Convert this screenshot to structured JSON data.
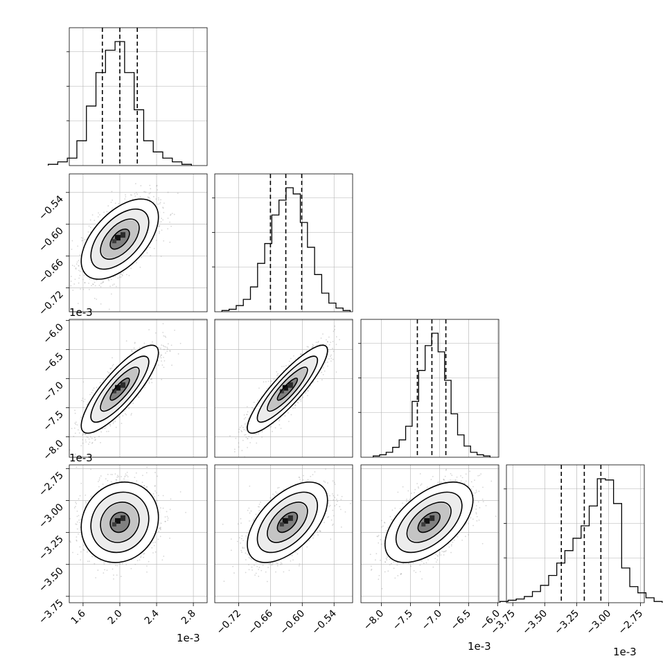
{
  "chart_data": {
    "type": "corner",
    "scale_label": "1e-3",
    "params": [
      {
        "range": [
          1.45,
          2.95
        ],
        "ticks": [
          1.6,
          2.0,
          2.4,
          2.8
        ],
        "tick_labels": [
          "1.6",
          "2.0",
          "2.4",
          "2.8"
        ],
        "quantiles": [
          1.81,
          2.0,
          2.19
        ],
        "hist_counts": [
          1,
          3,
          6,
          20,
          48,
          75,
          93,
          100,
          75,
          45,
          20,
          11,
          6,
          3,
          1
        ]
      },
      {
        "range": [
          -0.765,
          -0.505
        ],
        "ticks": [
          -0.72,
          -0.66,
          -0.6,
          -0.54
        ],
        "tick_labels": [
          "−0.72",
          "−0.66",
          "−0.60",
          "−0.54"
        ],
        "quantiles": [
          -0.66,
          -0.631,
          -0.601
        ],
        "hist_counts": [
          1,
          2,
          5,
          10,
          20,
          39,
          55,
          78,
          90,
          100,
          95,
          72,
          52,
          30,
          15,
          7,
          3,
          1
        ]
      },
      {
        "range": [
          -8.35,
          -5.98
        ],
        "ticks": [
          -8.0,
          -7.5,
          -7.0,
          -6.5,
          -6.0
        ],
        "tick_labels": [
          "−8.0",
          "−7.5",
          "−7.0",
          "−6.5",
          "−6.0"
        ],
        "quantiles": [
          -7.38,
          -7.13,
          -6.89
        ],
        "hist_counts": [
          1,
          2,
          4,
          8,
          14,
          25,
          45,
          70,
          90,
          100,
          85,
          62,
          35,
          18,
          9,
          4,
          2,
          1
        ]
      },
      {
        "range": [
          -3.8,
          -2.72
        ],
        "ticks": [
          -3.75,
          -3.5,
          -3.25,
          -3.0,
          -2.75
        ],
        "tick_labels": [
          "−3.75",
          "−3.50",
          "−3.25",
          "−3.00",
          "−2.75"
        ],
        "quantiles": [
          -3.37,
          -3.19,
          -3.06
        ],
        "hist_counts": [
          1,
          2,
          3,
          5,
          9,
          14,
          22,
          32,
          42,
          52,
          62,
          78,
          100,
          99,
          80,
          28,
          13,
          8,
          4,
          1
        ]
      }
    ],
    "pairs": [
      {
        "x": 0,
        "y": 1,
        "mean": [
          2.0,
          -0.628
        ],
        "sd": [
          0.2,
          0.036
        ],
        "rho": 0.55
      },
      {
        "x": 0,
        "y": 2,
        "mean": [
          2.0,
          -7.18
        ],
        "sd": [
          0.2,
          0.36
        ],
        "rho": 0.83
      },
      {
        "x": 1,
        "y": 2,
        "mean": [
          -0.628,
          -7.18
        ],
        "sd": [
          0.036,
          0.36
        ],
        "rho": 0.88
      },
      {
        "x": 0,
        "y": 3,
        "mean": [
          2.0,
          -3.17
        ],
        "sd": [
          0.2,
          0.15
        ],
        "rho": 0.12
      },
      {
        "x": 1,
        "y": 3,
        "mean": [
          -0.628,
          -3.17
        ],
        "sd": [
          0.036,
          0.15
        ],
        "rho": 0.55
      },
      {
        "x": 2,
        "y": 3,
        "mean": [
          -7.18,
          -3.17
        ],
        "sd": [
          0.36,
          0.15
        ],
        "rho": 0.55
      }
    ],
    "contour_levels_sigma": [
      0.5,
      1.0,
      1.5,
      2.0
    ],
    "grid": true,
    "colors": {
      "line": "#000000",
      "grid": "#b0b0b0",
      "points": "#8a8a8a"
    }
  }
}
